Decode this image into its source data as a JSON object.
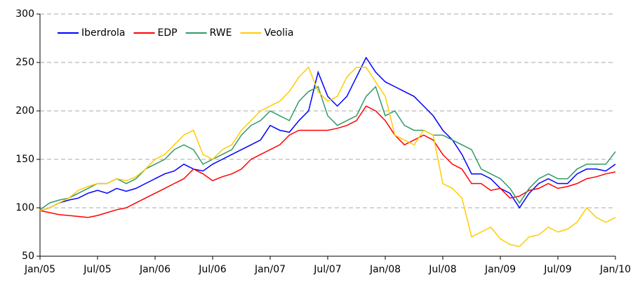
{
  "chart_data": {
    "type": "line",
    "categories": [
      "Jan/05",
      null,
      null,
      null,
      null,
      null,
      "Jul/05",
      null,
      null,
      null,
      null,
      null,
      "Jan/06",
      null,
      null,
      null,
      null,
      null,
      "Jul/06",
      null,
      null,
      null,
      null,
      null,
      "Jan/07",
      null,
      null,
      null,
      null,
      null,
      "Jul/07",
      null,
      null,
      null,
      null,
      null,
      "Jan/08",
      null,
      null,
      null,
      null,
      null,
      "Jul/08",
      null,
      null,
      null,
      null,
      null,
      "Jan/09",
      null,
      null,
      null,
      null,
      null,
      "Jul/09",
      null,
      null,
      null,
      null,
      null,
      "Jan/10"
    ],
    "series": [
      {
        "name": "Iberdrola",
        "color": "#0000ff",
        "values": [
          97,
          100,
          105,
          108,
          110,
          115,
          118,
          115,
          120,
          117,
          120,
          125,
          130,
          135,
          138,
          145,
          140,
          138,
          145,
          150,
          155,
          160,
          165,
          170,
          185,
          180,
          178,
          190,
          200,
          240,
          215,
          205,
          215,
          235,
          255,
          240,
          230,
          225,
          220,
          215,
          205,
          195,
          180,
          170,
          155,
          135,
          135,
          130,
          120,
          115,
          100,
          115,
          125,
          130,
          125,
          125,
          135,
          140,
          140,
          138,
          145
        ]
      },
      {
        "name": "EDP",
        "color": "#ff0000",
        "values": [
          97,
          95,
          93,
          92,
          91,
          90,
          92,
          95,
          98,
          100,
          105,
          110,
          115,
          120,
          125,
          130,
          140,
          135,
          128,
          132,
          135,
          140,
          150,
          155,
          160,
          165,
          175,
          180,
          180,
          180,
          180,
          182,
          185,
          190,
          205,
          200,
          190,
          175,
          165,
          170,
          175,
          170,
          155,
          145,
          140,
          125,
          125,
          118,
          120,
          110,
          112,
          118,
          120,
          125,
          120,
          122,
          125,
          130,
          132,
          135,
          137
        ]
      },
      {
        "name": "RWE",
        "color": "#339966",
        "values": [
          98,
          105,
          108,
          110,
          115,
          120,
          125,
          125,
          130,
          125,
          130,
          140,
          145,
          150,
          160,
          165,
          160,
          145,
          150,
          155,
          160,
          175,
          185,
          190,
          200,
          195,
          190,
          210,
          220,
          225,
          195,
          185,
          190,
          195,
          215,
          225,
          195,
          200,
          185,
          180,
          180,
          175,
          175,
          170,
          165,
          160,
          140,
          135,
          130,
          120,
          105,
          120,
          130,
          135,
          130,
          130,
          140,
          145,
          145,
          145,
          158
        ]
      },
      {
        "name": "Veolia",
        "color": "#ffcc00",
        "values": [
          97,
          100,
          105,
          110,
          118,
          122,
          125,
          125,
          130,
          128,
          132,
          140,
          150,
          155,
          165,
          175,
          180,
          155,
          150,
          160,
          165,
          180,
          190,
          200,
          205,
          210,
          220,
          235,
          245,
          220,
          210,
          215,
          235,
          245,
          245,
          230,
          215,
          175,
          170,
          165,
          180,
          175,
          125,
          120,
          110,
          70,
          75,
          80,
          68,
          62,
          60,
          70,
          72,
          80,
          75,
          78,
          85,
          100,
          90,
          85,
          90
        ]
      }
    ],
    "ylim": [
      50,
      300
    ],
    "yticks": [
      50,
      100,
      150,
      200,
      250,
      300
    ],
    "grid": true,
    "legend": "top-left"
  }
}
